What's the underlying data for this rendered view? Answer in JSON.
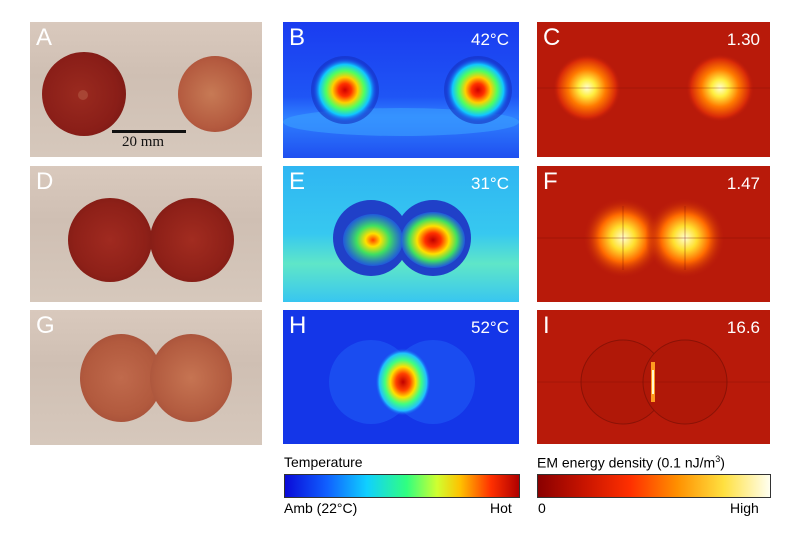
{
  "panels": {
    "A": {
      "label": "A"
    },
    "B": {
      "label": "B",
      "value": "42°C"
    },
    "C": {
      "label": "C",
      "value": "1.30"
    },
    "D": {
      "label": "D"
    },
    "E": {
      "label": "E",
      "value": "31°C"
    },
    "F": {
      "label": "F",
      "value": "1.47"
    },
    "G": {
      "label": "G"
    },
    "H": {
      "label": "H",
      "value": "52°C"
    },
    "I": {
      "label": "I",
      "value": "16.6"
    }
  },
  "scale_bar": {
    "label": "20 mm"
  },
  "colorbars": {
    "temperature": {
      "title": "Temperature",
      "low": "Amb (22°C)",
      "high": "Hot"
    },
    "em": {
      "title": "EM energy density (0.1 nJ/m³)",
      "low": "0",
      "high": "High"
    }
  },
  "colors": {
    "grape_dark": "#8a1f18",
    "grape_light": "#b55a3e",
    "em_background": "#b81a0a",
    "thermal_background": "#1a3cf0"
  }
}
